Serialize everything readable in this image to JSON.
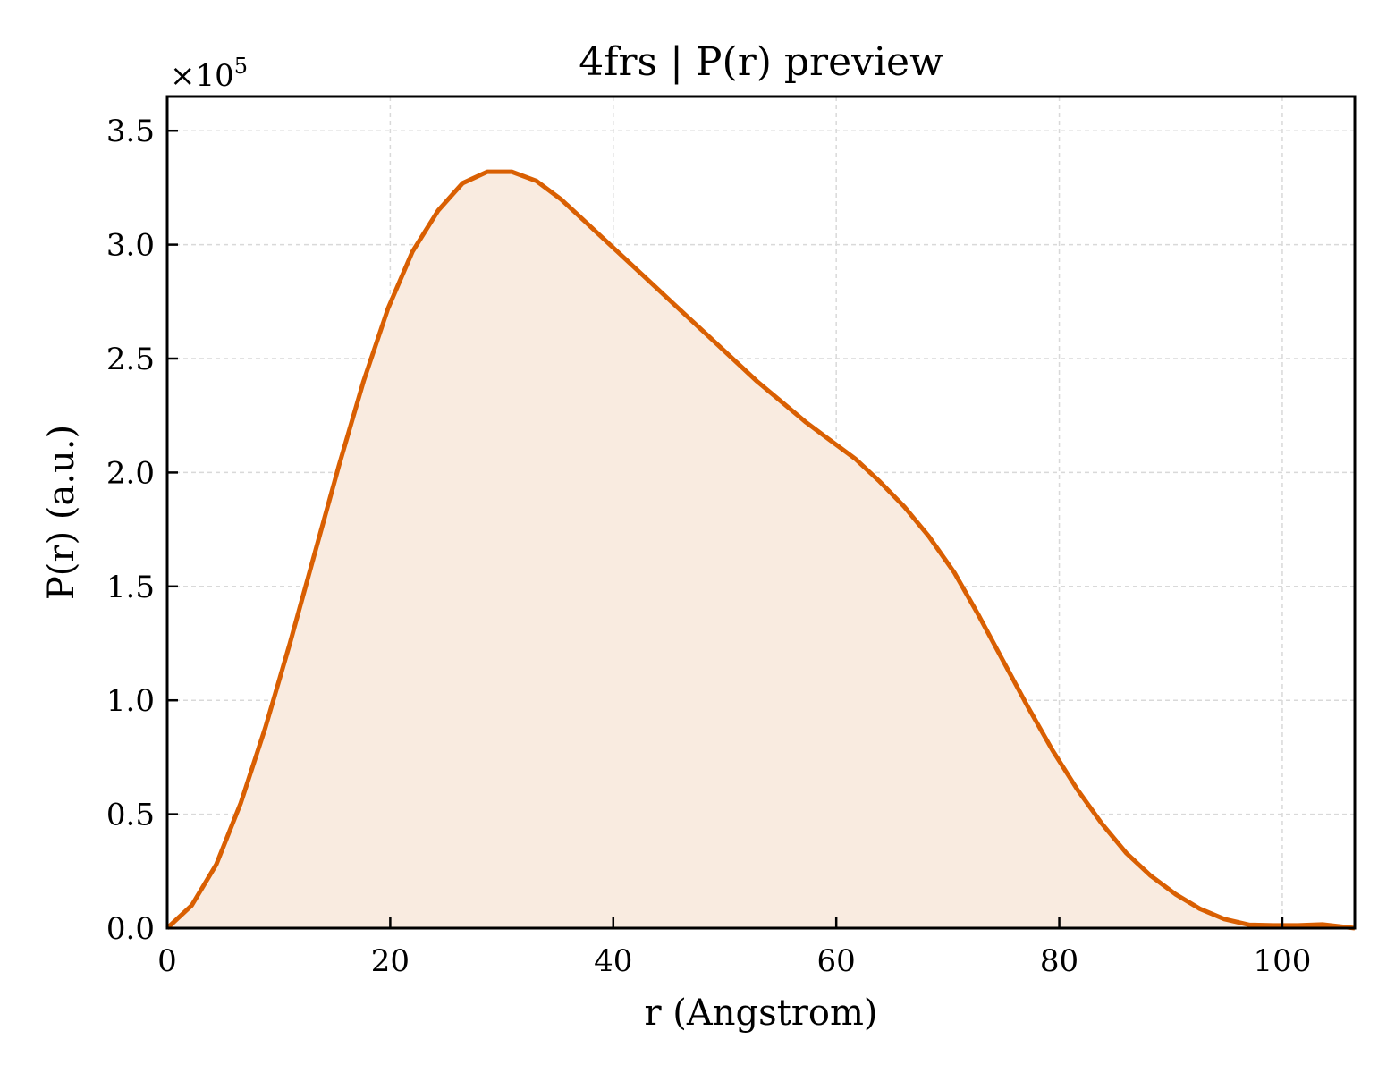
{
  "chart_data": {
    "type": "area",
    "title": "4frs | P(r) preview",
    "xlabel": "r (Angstrom)",
    "ylabel": "P(r) (a.u.)",
    "y_offset_label": {
      "base": "×10",
      "exponent": "5"
    },
    "xlim": [
      0,
      106.5
    ],
    "ylim": [
      0,
      3.65
    ],
    "y_scale_factor": 100000,
    "xticks": [
      0,
      20,
      40,
      60,
      80,
      100
    ],
    "xtick_labels": [
      "0",
      "20",
      "40",
      "60",
      "80",
      "100"
    ],
    "yticks": [
      0,
      0.5,
      1.0,
      1.5,
      2.0,
      2.5,
      3.0,
      3.5
    ],
    "ytick_labels": [
      "0.0",
      "0.5",
      "1.0",
      "1.5",
      "2.0",
      "2.5",
      "3.0",
      "3.5"
    ],
    "grid": true,
    "legend": "none",
    "colors": {
      "line": "#d95f02",
      "fill": "#f9ebe0",
      "grid": "#d9d9d9"
    },
    "series": [
      {
        "x": [
          0,
          2.2,
          4.4,
          6.6,
          8.8,
          11.0,
          13.2,
          15.4,
          17.6,
          19.8,
          22.0,
          24.3,
          26.5,
          28.7,
          30.9,
          33.1,
          35.3,
          37.5,
          39.7,
          41.9,
          44.1,
          46.3,
          48.5,
          50.7,
          52.9,
          55.1,
          57.3,
          59.5,
          61.7,
          63.9,
          66.1,
          68.3,
          70.6,
          72.8,
          75.0,
          77.2,
          79.4,
          81.6,
          83.8,
          86.0,
          88.2,
          90.4,
          92.6,
          94.8,
          97.0,
          99.2,
          101.4,
          103.6,
          106.5
        ],
        "y": [
          0.0,
          0.1,
          0.28,
          0.55,
          0.88,
          1.25,
          1.64,
          2.03,
          2.4,
          2.72,
          2.97,
          3.15,
          3.27,
          3.32,
          3.32,
          3.28,
          3.2,
          3.1,
          3.0,
          2.9,
          2.8,
          2.7,
          2.6,
          2.5,
          2.4,
          2.31,
          2.22,
          2.14,
          2.06,
          1.96,
          1.85,
          1.72,
          1.56,
          1.37,
          1.17,
          0.97,
          0.78,
          0.61,
          0.46,
          0.33,
          0.23,
          0.15,
          0.085,
          0.04,
          0.015,
          0.012,
          0.012,
          0.016,
          0.0
        ]
      }
    ]
  }
}
